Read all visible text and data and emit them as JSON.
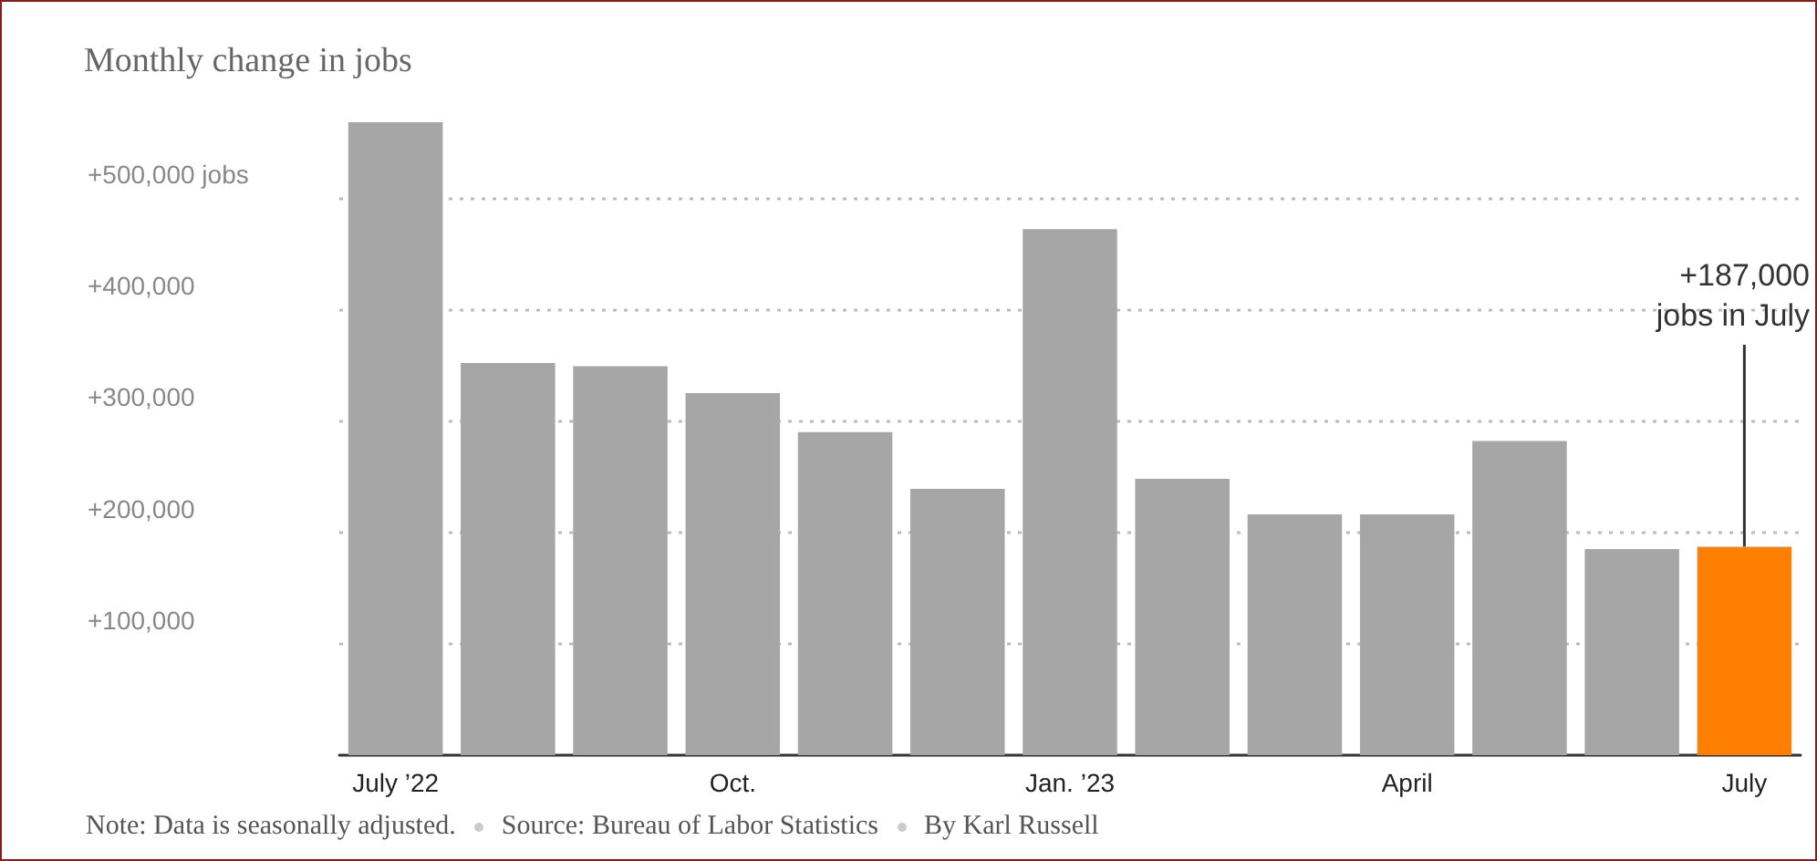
{
  "chart_data": {
    "type": "bar",
    "title": "Monthly change in jobs",
    "categories": [
      "July ’22",
      null,
      null,
      "Oct.",
      null,
      null,
      "Jan. ’23",
      null,
      null,
      "April",
      null,
      null,
      "July"
    ],
    "values": [
      568000,
      352000,
      349000,
      325000,
      290000,
      239000,
      472000,
      248000,
      216000,
      216000,
      282000,
      185000,
      187000
    ],
    "colors": [
      "#a6a6a6",
      "#a6a6a6",
      "#a6a6a6",
      "#a6a6a6",
      "#a6a6a6",
      "#a6a6a6",
      "#a6a6a6",
      "#a6a6a6",
      "#a6a6a6",
      "#a6a6a6",
      "#a6a6a6",
      "#a6a6a6",
      "#ff8000"
    ],
    "yticks": [
      {
        "value": 100000,
        "label": "+100,000"
      },
      {
        "value": 200000,
        "label": "+200,000"
      },
      {
        "value": 300000,
        "label": "+300,000"
      },
      {
        "value": 400000,
        "label": "+400,000"
      },
      {
        "value": 500000,
        "label": "+500,000 jobs"
      }
    ],
    "ylim": [
      0,
      568000
    ],
    "grid": "y",
    "annotations": [
      {
        "text": "+187,000\njobs in July",
        "x": "July",
        "y": 187000
      },
      "Note: Data is seasonally adjusted.",
      "Source: Bureau of Labor Statistics",
      "By Karl Russell"
    ]
  }
}
